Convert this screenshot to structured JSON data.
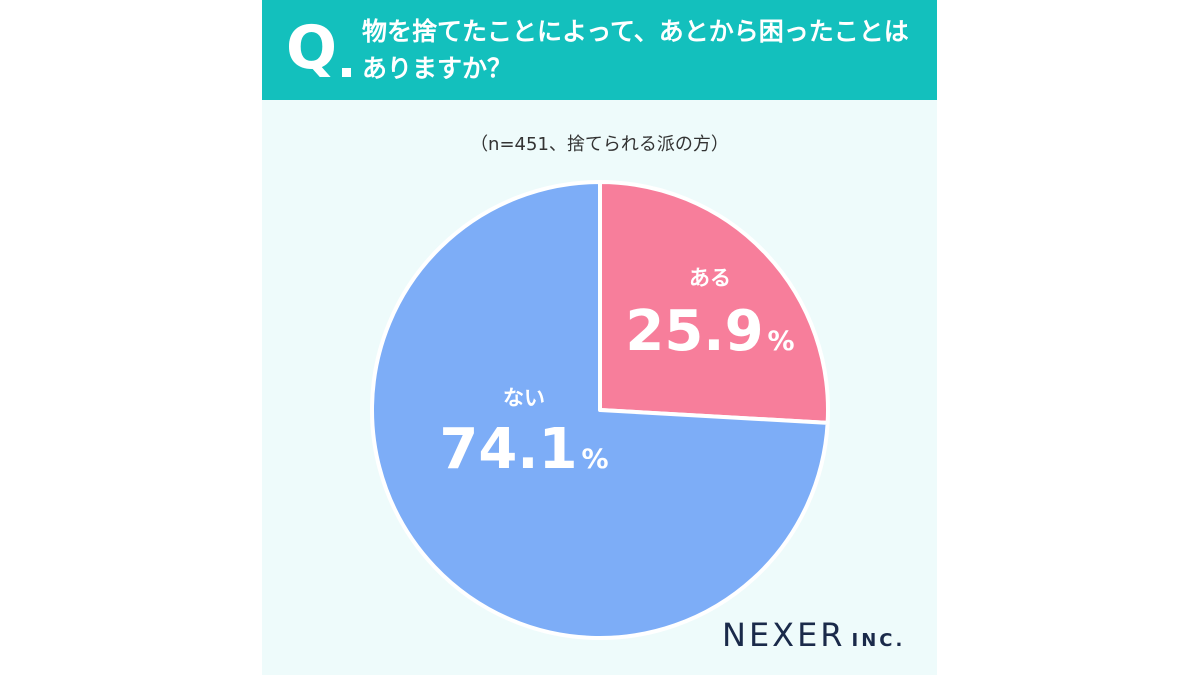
{
  "header": {
    "q_label": "Q",
    "question_line1": "物を捨てたことによって、あとから困ったことは",
    "question_line2": "ありますか？"
  },
  "note": "（n=451、捨てられる派の方）",
  "logo": {
    "main": "NEXER",
    "sub": "INC."
  },
  "colors": {
    "accent": "#13c0bd",
    "background": "#eefbfb"
  },
  "chart_data": {
    "type": "pie",
    "n": 451,
    "start_angle_deg": 0,
    "direction": "clockwise",
    "slices": [
      {
        "label": "ある",
        "value": 25.9,
        "display": "25.9",
        "unit": "%",
        "color": "#f77e9b"
      },
      {
        "label": "ない",
        "value": 74.1,
        "display": "74.1",
        "unit": "%",
        "color": "#7dadf7"
      }
    ]
  }
}
